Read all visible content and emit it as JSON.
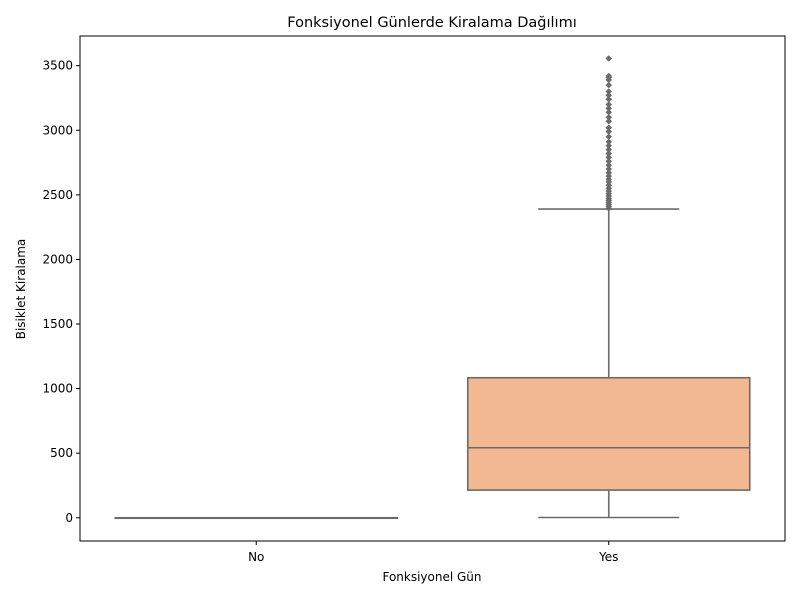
{
  "chart_data": {
    "type": "box",
    "title": "Fonksiyonel Günlerde Kiralama Dağılımı",
    "xlabel": "Fonksiyonel Gün",
    "ylabel": "Bisiklet Kiralama",
    "categories": [
      "No",
      "Yes"
    ],
    "ylim": [
      -180,
      3730
    ],
    "yticks": [
      0,
      500,
      1000,
      1500,
      2000,
      2500,
      3000,
      3500
    ],
    "grid": false,
    "legend": "none",
    "boxes": [
      {
        "category": "No",
        "whisker_low": 0,
        "q1": 0,
        "median": 0,
        "q3": 0,
        "whisker_high": 0,
        "outliers": []
      },
      {
        "category": "Yes",
        "whisker_low": 2,
        "q1": 214,
        "median": 542,
        "q3": 1084,
        "whisker_high": 2390,
        "outliers": [
          2395,
          2410,
          2425,
          2440,
          2455,
          2470,
          2490,
          2510,
          2530,
          2550,
          2575,
          2600,
          2620,
          2645,
          2670,
          2700,
          2730,
          2760,
          2790,
          2820,
          2850,
          2880,
          2910,
          2950,
          2990,
          3020,
          3070,
          3100,
          3140,
          3170,
          3200,
          3240,
          3270,
          3300,
          3350,
          3390,
          3410,
          3420,
          3556
        ]
      }
    ],
    "colors": {
      "No": "#66c2a5",
      "Yes": "#f1b891",
      "edge": "#6b6b6b"
    }
  }
}
